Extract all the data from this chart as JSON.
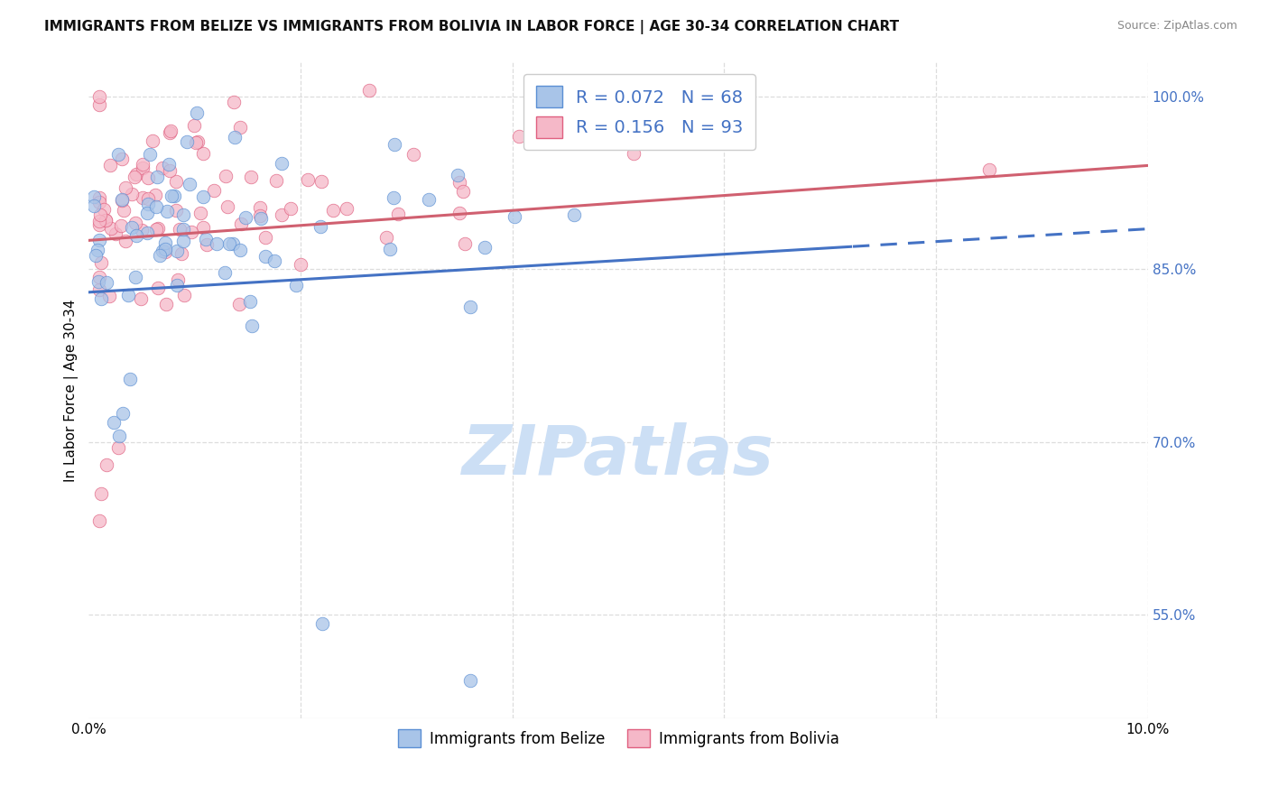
{
  "title": "IMMIGRANTS FROM BELIZE VS IMMIGRANTS FROM BOLIVIA IN LABOR FORCE | AGE 30-34 CORRELATION CHART",
  "source": "Source: ZipAtlas.com",
  "ylabel": "In Labor Force | Age 30-34",
  "xlim": [
    0.0,
    0.1
  ],
  "ylim": [
    0.46,
    1.03
  ],
  "xticks": [
    0.0,
    0.02,
    0.04,
    0.06,
    0.08,
    0.1
  ],
  "xticklabels": [
    "0.0%",
    "",
    "",
    "",
    "",
    "10.0%"
  ],
  "ytick_right_vals": [
    1.0,
    0.85,
    0.7,
    0.55
  ],
  "ytick_right_labels": [
    "100.0%",
    "85.0%",
    "70.0%",
    "55.0%"
  ],
  "belize_R": 0.072,
  "belize_N": 68,
  "bolivia_R": 0.156,
  "bolivia_N": 93,
  "belize_fill_color": "#a8c4e8",
  "bolivia_fill_color": "#f5b8c8",
  "belize_edge_color": "#5b8fd4",
  "bolivia_edge_color": "#e06080",
  "belize_line_color": "#4472c4",
  "bolivia_line_color": "#d06070",
  "belize_line_solid_end": 0.072,
  "belize_intercept": 0.83,
  "belize_slope": 0.55,
  "bolivia_intercept": 0.875,
  "bolivia_slope": 0.65,
  "watermark": "ZIPatlas",
  "watermark_color": "#ccdff5",
  "background_color": "#ffffff",
  "grid_color": "#dddddd",
  "marker_size": 110
}
